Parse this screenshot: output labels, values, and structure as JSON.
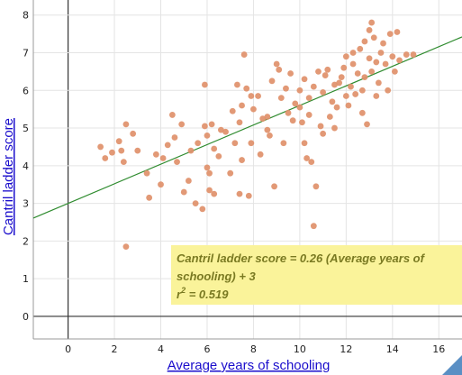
{
  "chart_data": {
    "type": "scatter",
    "xlabel": "Average years of schooling",
    "ylabel": "Cantril ladder score",
    "xlim": [
      -1.5,
      17
    ],
    "ylim": [
      -0.6,
      8.4
    ],
    "x_ticks": [
      0,
      2,
      4,
      6,
      8,
      10,
      12,
      14,
      16
    ],
    "y_ticks": [
      0,
      1,
      2,
      3,
      4,
      5,
      6,
      7,
      8
    ],
    "grid": true,
    "colors": {
      "points": "#e0906a",
      "trendline": "#2e8b2e",
      "annotation_bg": "#faf39a",
      "axis_labels": "#1a0dcc"
    },
    "trendline": {
      "slope": 0.26,
      "intercept": 3
    },
    "annotation": {
      "line1": "Cantril ladder score = 0.26 (Average years of",
      "line2": "schooling) + 3",
      "r2_label": "r",
      "r2_sup": "2",
      "r2_value": " = 0.519"
    },
    "points": [
      [
        1.4,
        4.5
      ],
      [
        1.6,
        4.2
      ],
      [
        1.9,
        4.35
      ],
      [
        2.2,
        4.65
      ],
      [
        2.3,
        4.4
      ],
      [
        2.4,
        4.1
      ],
      [
        2.5,
        1.85
      ],
      [
        2.5,
        5.1
      ],
      [
        2.8,
        4.85
      ],
      [
        3.0,
        4.4
      ],
      [
        3.4,
        3.8
      ],
      [
        3.5,
        3.15
      ],
      [
        3.8,
        4.3
      ],
      [
        4.0,
        3.5
      ],
      [
        4.1,
        4.2
      ],
      [
        4.3,
        4.55
      ],
      [
        4.5,
        5.35
      ],
      [
        4.6,
        4.75
      ],
      [
        4.7,
        4.1
      ],
      [
        4.9,
        5.1
      ],
      [
        5.0,
        3.3
      ],
      [
        5.2,
        3.6
      ],
      [
        5.3,
        4.4
      ],
      [
        5.5,
        3.0
      ],
      [
        5.6,
        4.6
      ],
      [
        5.8,
        2.85
      ],
      [
        5.9,
        6.15
      ],
      [
        5.9,
        5.05
      ],
      [
        6.0,
        4.8
      ],
      [
        6.0,
        3.95
      ],
      [
        6.1,
        3.35
      ],
      [
        6.1,
        3.8
      ],
      [
        6.2,
        5.1
      ],
      [
        6.3,
        3.25
      ],
      [
        6.3,
        4.45
      ],
      [
        6.5,
        4.25
      ],
      [
        6.6,
        4.95
      ],
      [
        6.8,
        4.9
      ],
      [
        7.0,
        3.8
      ],
      [
        7.1,
        5.45
      ],
      [
        7.2,
        4.6
      ],
      [
        7.3,
        6.15
      ],
      [
        7.4,
        3.25
      ],
      [
        7.4,
        5.15
      ],
      [
        7.5,
        5.6
      ],
      [
        7.5,
        4.15
      ],
      [
        7.6,
        6.95
      ],
      [
        7.7,
        6.05
      ],
      [
        7.8,
        3.2
      ],
      [
        7.9,
        5.85
      ],
      [
        7.9,
        4.6
      ],
      [
        8.0,
        5.5
      ],
      [
        8.2,
        5.85
      ],
      [
        8.3,
        4.3
      ],
      [
        8.4,
        5.25
      ],
      [
        8.6,
        5.3
      ],
      [
        8.6,
        4.95
      ],
      [
        8.7,
        4.8
      ],
      [
        8.8,
        6.25
      ],
      [
        8.9,
        3.45
      ],
      [
        9.0,
        6.7
      ],
      [
        9.1,
        6.55
      ],
      [
        9.2,
        5.8
      ],
      [
        9.3,
        4.6
      ],
      [
        9.4,
        6.05
      ],
      [
        9.5,
        5.4
      ],
      [
        9.6,
        6.45
      ],
      [
        9.7,
        5.2
      ],
      [
        9.8,
        5.65
      ],
      [
        10.0,
        5.55
      ],
      [
        10.0,
        6.0
      ],
      [
        10.1,
        5.15
      ],
      [
        10.2,
        4.6
      ],
      [
        10.2,
        6.3
      ],
      [
        10.3,
        4.2
      ],
      [
        10.4,
        5.8
      ],
      [
        10.4,
        5.35
      ],
      [
        10.5,
        4.1
      ],
      [
        10.6,
        2.4
      ],
      [
        10.6,
        6.1
      ],
      [
        10.7,
        3.45
      ],
      [
        10.8,
        6.5
      ],
      [
        10.9,
        5.05
      ],
      [
        11.0,
        4.85
      ],
      [
        11.0,
        5.95
      ],
      [
        11.1,
        6.4
      ],
      [
        11.2,
        6.55
      ],
      [
        11.3,
        5.3
      ],
      [
        11.4,
        5.7
      ],
      [
        11.5,
        6.15
      ],
      [
        11.5,
        5.0
      ],
      [
        11.6,
        5.55
      ],
      [
        11.7,
        6.2
      ],
      [
        11.8,
        6.35
      ],
      [
        11.9,
        6.6
      ],
      [
        12.0,
        5.85
      ],
      [
        12.0,
        6.9
      ],
      [
        12.1,
        5.6
      ],
      [
        12.2,
        6.1
      ],
      [
        12.3,
        6.7
      ],
      [
        12.4,
        5.9
      ],
      [
        12.5,
        6.45
      ],
      [
        12.6,
        7.1
      ],
      [
        12.7,
        5.4
      ],
      [
        12.7,
        6.0
      ],
      [
        12.8,
        7.3
      ],
      [
        12.8,
        6.35
      ],
      [
        12.9,
        5.1
      ],
      [
        13.0,
        6.85
      ],
      [
        13.0,
        7.6
      ],
      [
        13.1,
        7.8
      ],
      [
        13.1,
        6.5
      ],
      [
        13.2,
        7.4
      ],
      [
        13.3,
        6.75
      ],
      [
        13.3,
        5.85
      ],
      [
        13.4,
        6.2
      ],
      [
        13.5,
        7.0
      ],
      [
        13.6,
        7.25
      ],
      [
        13.7,
        6.7
      ],
      [
        13.8,
        6.0
      ],
      [
        13.9,
        7.5
      ],
      [
        14.0,
        6.9
      ],
      [
        14.1,
        6.5
      ],
      [
        14.2,
        7.55
      ],
      [
        14.3,
        6.8
      ],
      [
        14.6,
        6.95
      ],
      [
        14.9,
        6.95
      ],
      [
        12.3,
        7.0
      ]
    ]
  }
}
